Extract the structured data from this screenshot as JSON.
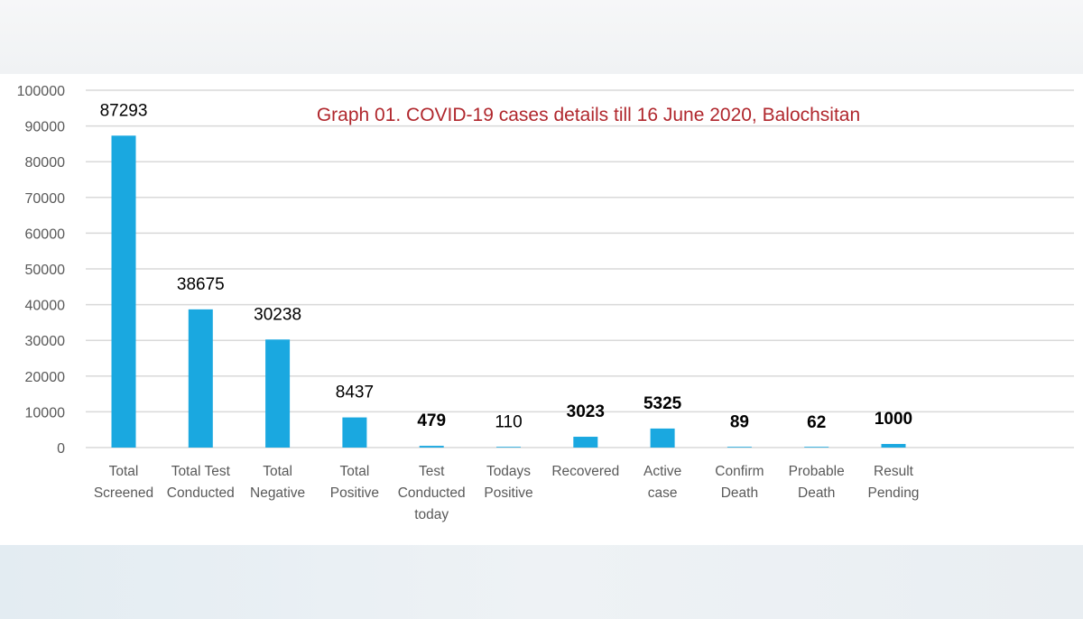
{
  "chart_data": {
    "type": "bar",
    "title": "Graph 01. COVID-19 cases details till 16 June 2020, Balochsitan",
    "categories": [
      [
        "Total",
        "Screened"
      ],
      [
        "Total Test",
        "Conducted"
      ],
      [
        "Total",
        "Negative"
      ],
      [
        "Total",
        "Positive"
      ],
      [
        "Test",
        "Conducted",
        "today"
      ],
      [
        "Todays",
        "Positive"
      ],
      [
        "Recovered"
      ],
      [
        "Active",
        "case"
      ],
      [
        "Confirm",
        "Death"
      ],
      [
        "Probable",
        "Death"
      ],
      [
        "Result",
        "Pending"
      ]
    ],
    "values": [
      87293,
      38675,
      30238,
      8437,
      479,
      110,
      3023,
      5325,
      89,
      62,
      1000
    ],
    "data_labels": [
      "87293",
      "38675",
      "30238",
      "8437",
      "479",
      "110",
      "3023",
      "5325",
      "89",
      "62",
      "1000"
    ],
    "bold_labels": [
      false,
      false,
      false,
      false,
      true,
      false,
      true,
      true,
      true,
      true,
      true
    ],
    "ylim": [
      0,
      100000
    ],
    "yticks": [
      0,
      10000,
      20000,
      30000,
      40000,
      50000,
      60000,
      70000,
      80000,
      90000,
      100000
    ],
    "grid": true,
    "xlabel": "",
    "ylabel": "",
    "bar_color": "#1aa8e0",
    "grid_color": "#d9d9d9",
    "title_color": "#b0272d"
  }
}
